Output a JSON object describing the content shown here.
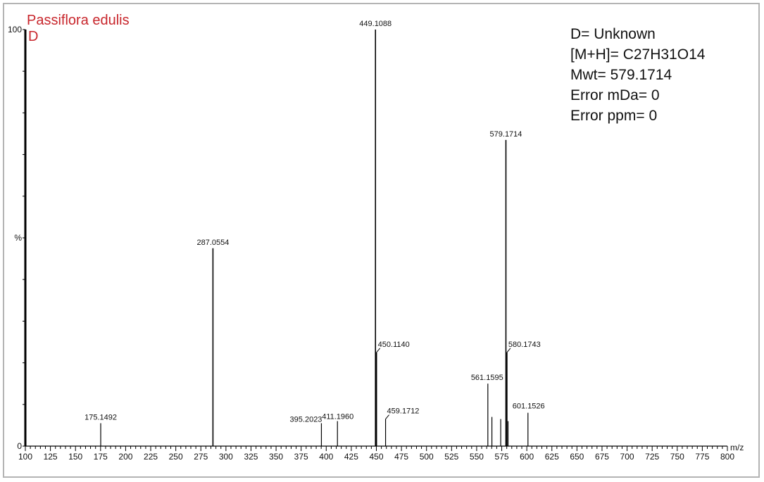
{
  "chart_data": {
    "type": "bar",
    "title": "Passiflora edulis",
    "subtitle": "D",
    "xlabel": "m/z",
    "ylabel": "%",
    "xlim": [
      100,
      800
    ],
    "ylim": [
      0,
      100
    ],
    "y_tick_labels": [
      "0",
      "%",
      "100"
    ],
    "x_ticks": [
      100,
      125,
      150,
      175,
      200,
      225,
      250,
      275,
      300,
      325,
      350,
      375,
      400,
      425,
      450,
      475,
      500,
      525,
      550,
      575,
      600,
      625,
      650,
      675,
      700,
      725,
      750,
      775,
      800
    ],
    "grid": false,
    "annotations": [
      "D= Unknown",
      "[M+H]= C27H31O14",
      "Mwt= 579.1714",
      "Error mDa= 0",
      "Error ppm= 0"
    ],
    "peaks": [
      {
        "mz": 175.1492,
        "label": "175.1492",
        "intensity": 5.5
      },
      {
        "mz": 287.0554,
        "label": "287.0554",
        "intensity": 47.5
      },
      {
        "mz": 395.2023,
        "label": "395.2023",
        "intensity": 5.5
      },
      {
        "mz": 411.196,
        "label": "411.1960",
        "intensity": 6
      },
      {
        "mz": 449.1088,
        "label": "449.1088",
        "intensity": 100
      },
      {
        "mz": 450.114,
        "label": "450.1140",
        "intensity": 22.5
      },
      {
        "mz": 459.1712,
        "label": "459.1712",
        "intensity": 6.5
      },
      {
        "mz": 561.1595,
        "label": "561.1595",
        "intensity": 15
      },
      {
        "mz": 565.2,
        "label": "",
        "intensity": 7
      },
      {
        "mz": 574.0,
        "label": "",
        "intensity": 6.5
      },
      {
        "mz": 579.1714,
        "label": "579.1714",
        "intensity": 73.5
      },
      {
        "mz": 580.1743,
        "label": "580.1743",
        "intensity": 22.5
      },
      {
        "mz": 581.3,
        "label": "",
        "intensity": 6
      },
      {
        "mz": 601.1526,
        "label": "601.1526",
        "intensity": 8
      }
    ]
  }
}
